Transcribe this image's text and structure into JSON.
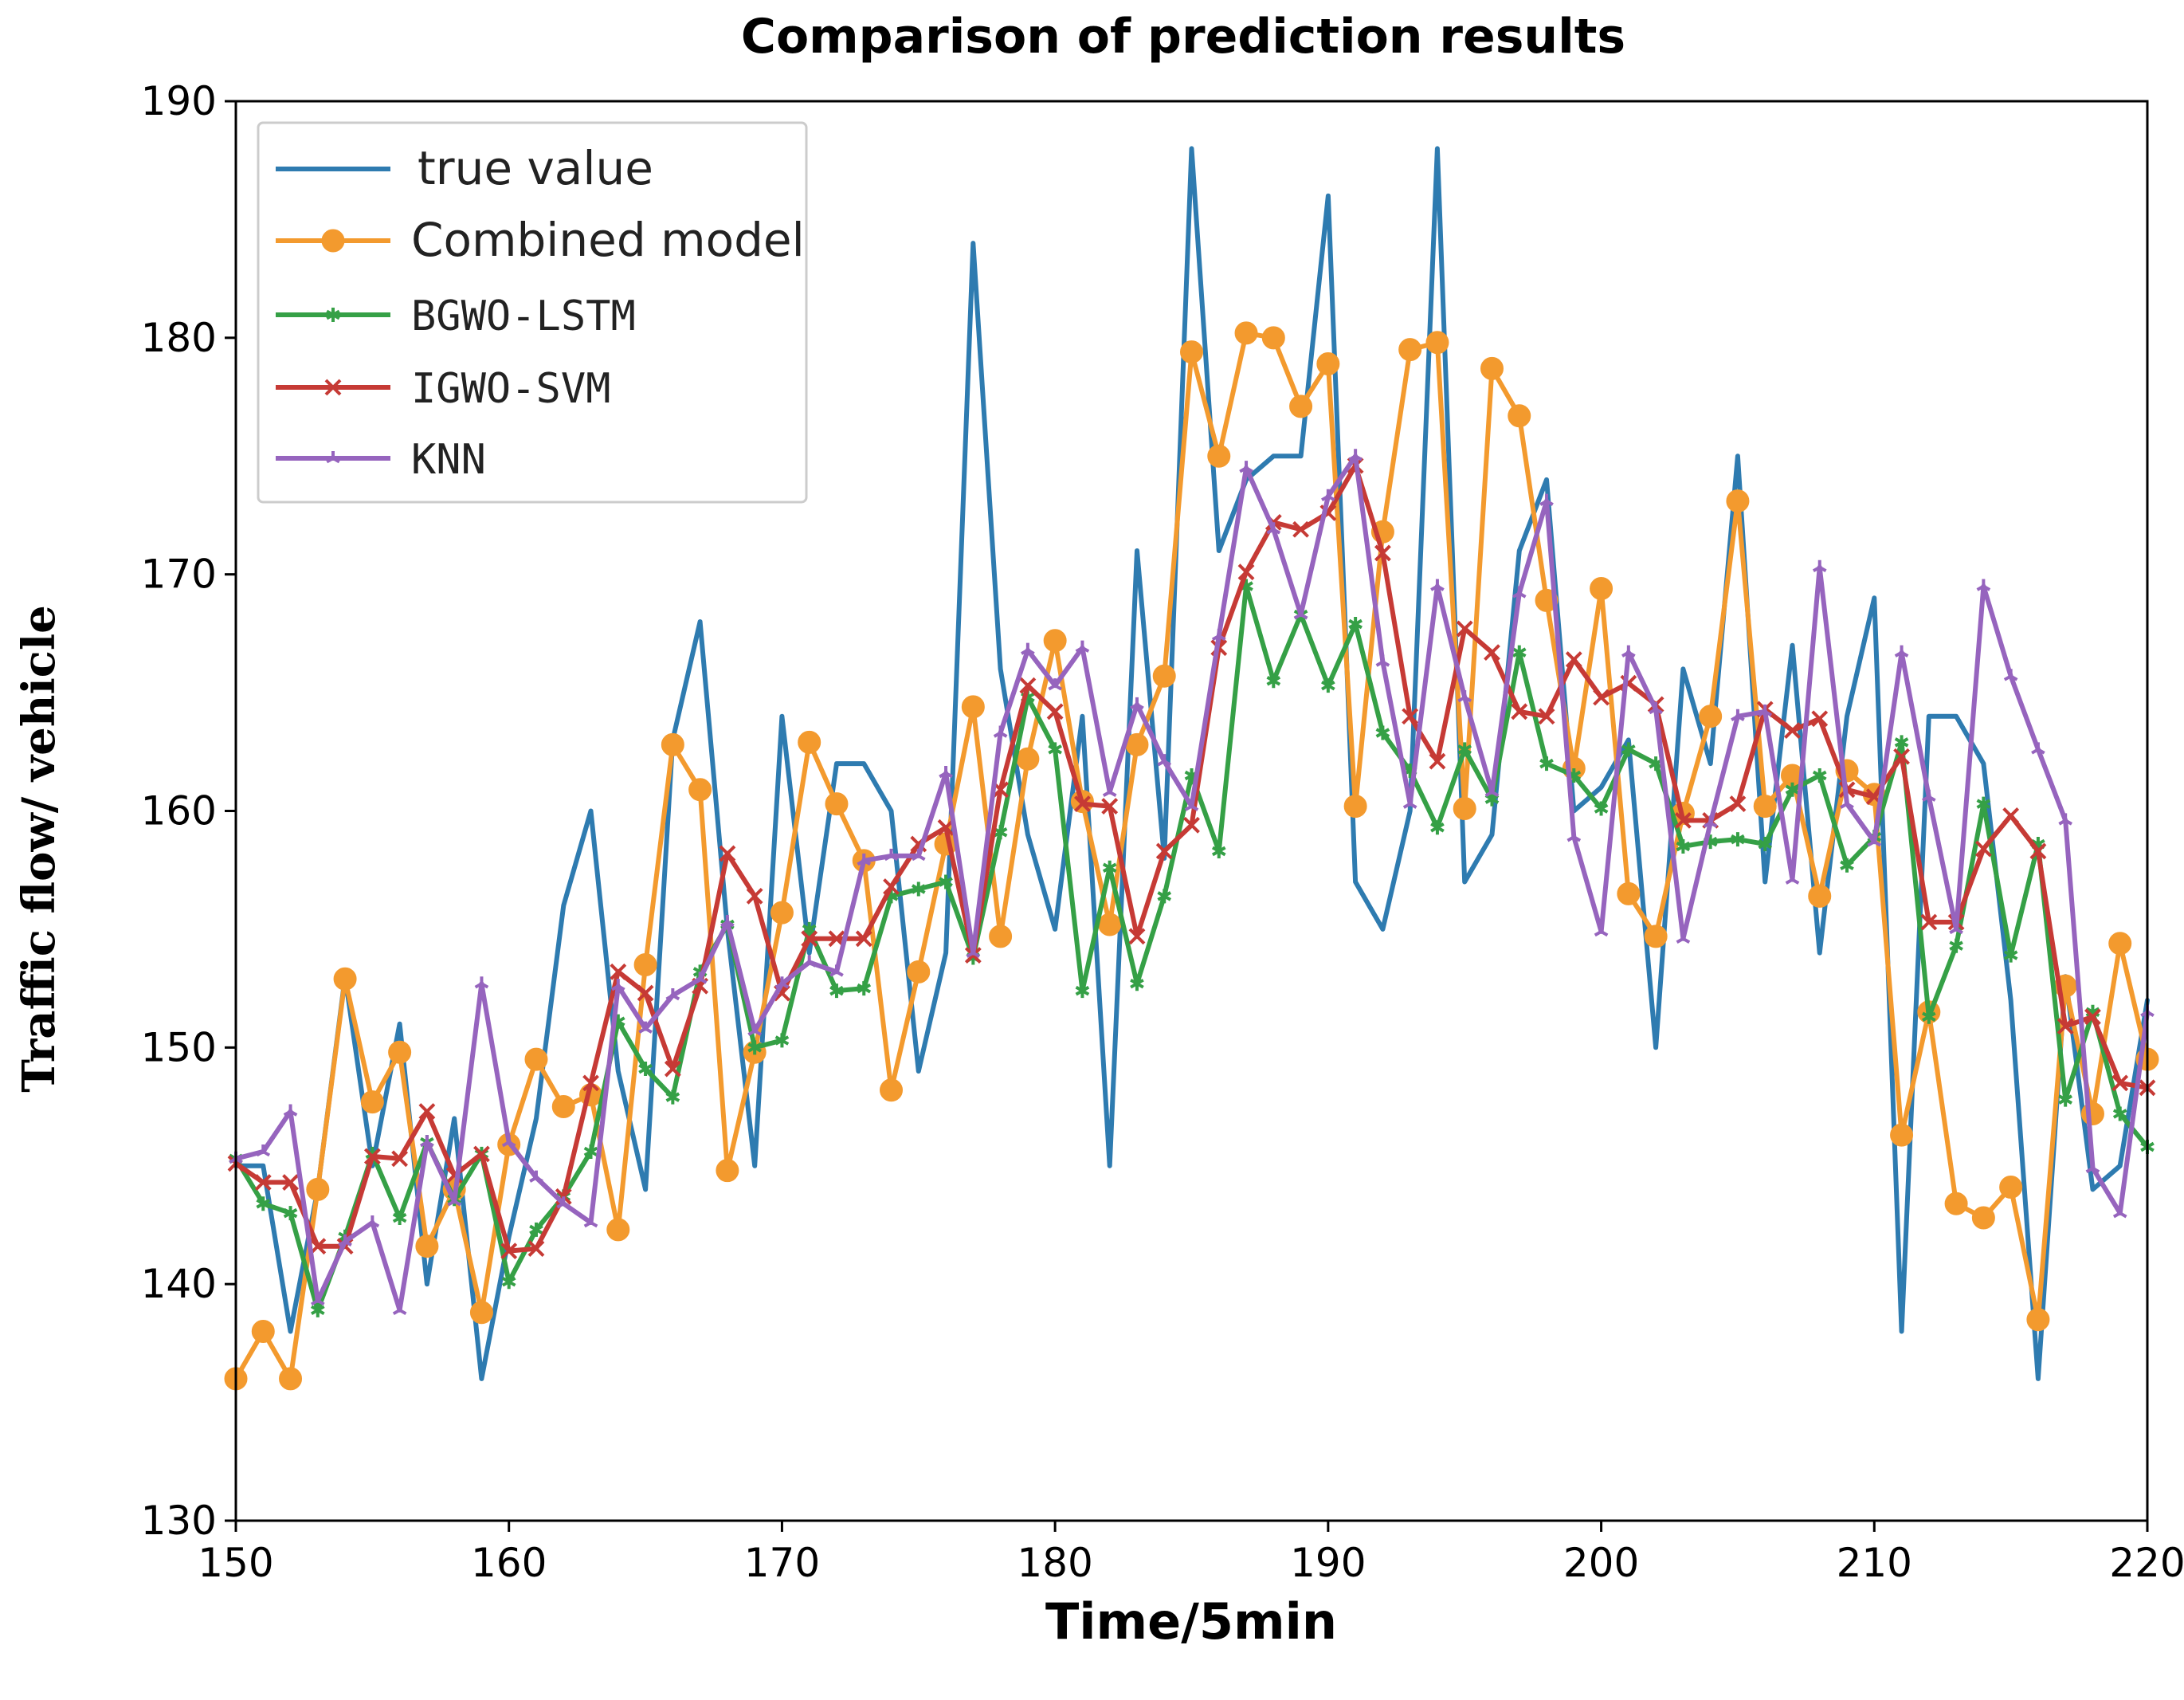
{
  "chart_data": {
    "type": "line",
    "title": "Comparison of prediction results",
    "xlabel": "Time/5min",
    "ylabel": "Traffic flow/ vehicle",
    "xlim": [
      150,
      220
    ],
    "ylim": [
      130,
      190
    ],
    "xticks": [
      150,
      160,
      170,
      180,
      190,
      200,
      210,
      220
    ],
    "yticks": [
      130,
      140,
      150,
      160,
      170,
      180,
      190
    ],
    "grid": false,
    "legend_position": "upper-left",
    "x": [
      150,
      151,
      152,
      153,
      154,
      155,
      156,
      157,
      158,
      159,
      160,
      161,
      162,
      163,
      164,
      165,
      166,
      167,
      168,
      169,
      170,
      171,
      172,
      173,
      174,
      175,
      176,
      177,
      178,
      179,
      180,
      181,
      182,
      183,
      184,
      185,
      186,
      187,
      188,
      189,
      190,
      191,
      192,
      193,
      194,
      195,
      196,
      197,
      198,
      199,
      200,
      201,
      202,
      203,
      204,
      205,
      206,
      207,
      208,
      209,
      210,
      211,
      212,
      213,
      214,
      215,
      216,
      217,
      218,
      219,
      220
    ],
    "series": [
      {
        "name": "true value",
        "color": "#2e7bb0",
        "marker": "none",
        "values": [
          145,
          145,
          138,
          144,
          153,
          145,
          151,
          140,
          147,
          136,
          142,
          147,
          156,
          160,
          149,
          144,
          163,
          168,
          155,
          145,
          164,
          154,
          162,
          162,
          160,
          149,
          154,
          184,
          166,
          159,
          155,
          164,
          145,
          171,
          158,
          188,
          171,
          174,
          175,
          175,
          186,
          157,
          155,
          160,
          188,
          157,
          159,
          171,
          174,
          160,
          161,
          163,
          150,
          166,
          162,
          175,
          157,
          167,
          154,
          164,
          169,
          138,
          164,
          164,
          162,
          152,
          136,
          153,
          144,
          145,
          152
        ]
      },
      {
        "name": "Combined model",
        "color": "#f39a2e",
        "marker": "circle",
        "values": [
          136,
          138,
          136,
          144,
          152.9,
          147.7,
          149.8,
          141.6,
          144,
          138.8,
          145.9,
          149.5,
          147.5,
          148,
          142.3,
          153.5,
          162.8,
          160.9,
          144.8,
          149.8,
          155.7,
          162.9,
          160.3,
          157.9,
          148.2,
          153.2,
          158.6,
          164.4,
          154.7,
          162.2,
          167.2,
          160.4,
          155.2,
          162.8,
          165.7,
          179.4,
          175,
          180.2,
          180,
          177.1,
          178.9,
          160.2,
          171.8,
          179.5,
          179.8,
          160.1,
          178.7,
          176.7,
          168.9,
          161.8,
          169.4,
          156.5,
          154.7,
          159.9,
          164,
          173.1,
          160.2,
          161.5,
          156.4,
          161.7,
          160.7,
          146.3,
          151.5,
          143.4,
          142.8,
          144.1,
          138.5,
          152.6,
          147.2,
          154.4,
          149.5
        ]
      },
      {
        "name": "BGWO-LSTM",
        "color": "#35a046",
        "marker": "star",
        "values": [
          145.3,
          143.4,
          143,
          138.9,
          142,
          145.5,
          142.8,
          146,
          143.6,
          145.5,
          140.1,
          142.3,
          143.7,
          145.6,
          151.1,
          149.1,
          147.9,
          153.2,
          155.2,
          150,
          150.3,
          155,
          152.4,
          152.5,
          156.4,
          156.7,
          157,
          153.8,
          159.1,
          164.8,
          162.6,
          152.4,
          157.6,
          152.7,
          156.4,
          161.5,
          158.3,
          169.5,
          165.5,
          168.3,
          165.3,
          167.9,
          163.3,
          161.7,
          159.3,
          162.6,
          160.5,
          166.7,
          162,
          161.5,
          160.1,
          162.6,
          162,
          158.5,
          158.7,
          158.8,
          158.6,
          160.9,
          161.5,
          157.7,
          158.9,
          162.9,
          151.3,
          154.3,
          160.3,
          153.9,
          158.6,
          147.8,
          151.5,
          147.2,
          145.8
        ]
      },
      {
        "name": "IGWO-SVM",
        "color": "#c63a35",
        "marker": "x",
        "values": [
          145.1,
          144.3,
          144.3,
          141.6,
          141.6,
          145.4,
          145.3,
          147.3,
          144.6,
          145.5,
          141.4,
          141.5,
          143.7,
          148.5,
          153.2,
          152.3,
          149.1,
          152.6,
          158.2,
          156.4,
          152.3,
          154.6,
          154.6,
          154.6,
          156.8,
          158.6,
          159.3,
          153.9,
          160.9,
          165.3,
          164.2,
          160.3,
          160.2,
          154.7,
          158.3,
          159.4,
          166.9,
          170.1,
          172.2,
          171.9,
          172.6,
          174.6,
          170.9,
          164,
          162.1,
          167.7,
          166.7,
          164.2,
          164,
          166.4,
          164.8,
          165.4,
          164.5,
          159.6,
          159.6,
          160.3,
          164.3,
          163.4,
          163.9,
          160.9,
          160.6,
          162.3,
          155.3,
          155.3,
          158.4,
          159.8,
          158.3,
          150.9,
          151.3,
          148.5,
          148.3
        ]
      },
      {
        "name": "KNN",
        "color": "#9664be",
        "marker": "tri",
        "values": [
          145.3,
          145.6,
          147.3,
          139.3,
          141.8,
          142.6,
          138.9,
          146,
          143.5,
          152.7,
          146,
          144.5,
          143.4,
          142.6,
          152.6,
          150.8,
          152.2,
          152.9,
          155.3,
          150.7,
          152.7,
          153.6,
          153.2,
          157.9,
          158.1,
          158.1,
          161.6,
          154,
          163.3,
          166.8,
          165.3,
          166.9,
          160.8,
          164.5,
          162.1,
          160.2,
          167.4,
          174.5,
          171.9,
          168.3,
          173.3,
          175,
          166.3,
          160.3,
          169.5,
          164.8,
          160.8,
          169.2,
          173.1,
          158.9,
          154.9,
          166.7,
          164.3,
          154.6,
          159.5,
          164,
          164.2,
          157.1,
          170.3,
          160.3,
          158.7,
          166.7,
          160.6,
          155,
          169.5,
          165.7,
          162.6,
          159.6,
          144.9,
          143,
          151.5
        ]
      }
    ]
  }
}
